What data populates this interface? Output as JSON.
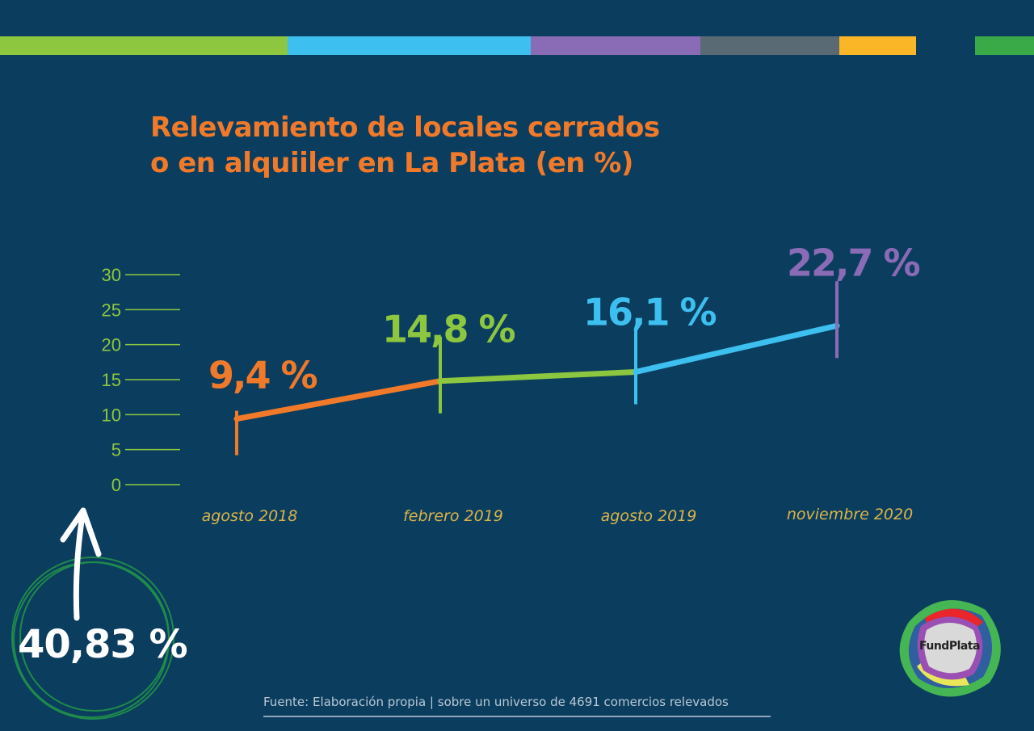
{
  "colors": {
    "background": "#0b3d5e",
    "title": "#f07a2a",
    "axis": "#8dc63f",
    "xlabel": "#d9b44a",
    "segments": [
      "#f07a2a",
      "#8dc63f",
      "#3dbfef",
      "#8a6bb5"
    ]
  },
  "top_bar_colors": [
    "#8dc63f",
    "#3dbfef",
    "#8a6bb5",
    "#5a6a75",
    "#fbb627",
    "#3aaa48"
  ],
  "chart_data": {
    "type": "line",
    "title": "Relevamiento de locales cerrados o en alquiiler en La Plata (en %)",
    "title_lines": [
      "Relevamiento de locales cerrados",
      "o en alquiiler en La Plata (en %)"
    ],
    "categories": [
      "agosto 2018",
      "febrero 2019",
      "agosto 2019",
      "noviembre 2020"
    ],
    "values": [
      9.4,
      14.8,
      16.1,
      22.7
    ],
    "data_labels": [
      "9,4 %",
      "14,8 %",
      "16,1 %",
      "22,7 %"
    ],
    "yticks": [
      0,
      5,
      10,
      15,
      20,
      25,
      30
    ],
    "ylim": [
      0,
      30
    ],
    "xlabel": "",
    "ylabel": "",
    "grid": false
  },
  "highlight": {
    "value_label": "40,83 %",
    "icon": "arrow-up-icon"
  },
  "source": "Fuente: Elaboración propia | sobre un universo de 4691 comercios relevados",
  "logo": {
    "text": "FundPlata"
  }
}
